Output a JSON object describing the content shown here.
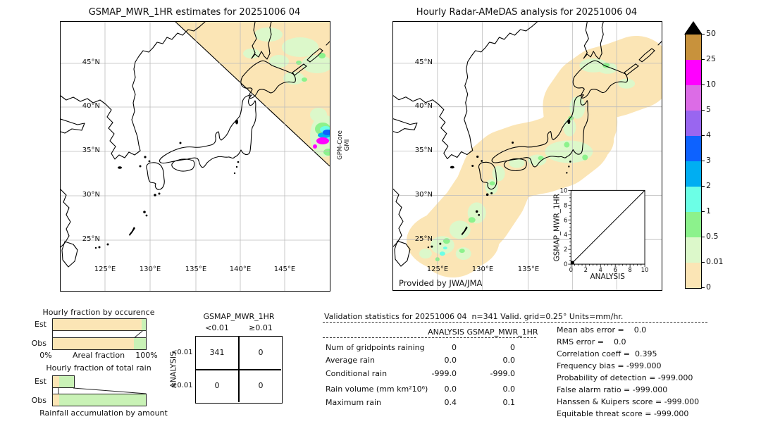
{
  "palette": {
    "peach": "#fbe5b5",
    "palegreen": "#dcf8ca",
    "green": "#8cf28c",
    "bargreen": "#c9f2b6",
    "aqua": "#6cffe6",
    "sky": "#00aef2",
    "blue": "#0d62ff",
    "purple": "#9966f0",
    "orchid": "#dc6ce6",
    "magenta": "#ff00ff",
    "tan": "#c8923c",
    "grid": "#bcbcbc"
  },
  "left_map": {
    "title": "GSMAP_MWR_1HR estimates for 20251006 04",
    "lat_labels": [
      "45°N",
      "40°N",
      "35°N",
      "30°N",
      "25°N"
    ],
    "lon_labels": [
      "125°E",
      "130°E",
      "135°E",
      "140°E",
      "145°E"
    ],
    "overlay_label_line1": "GPM-Core",
    "overlay_label_line2": "GMI"
  },
  "right_map": {
    "title": "Hourly Radar-AMeDAS analysis for 20251006 04",
    "lat_labels": [
      "45°N",
      "40°N",
      "35°N",
      "30°N",
      "25°N"
    ],
    "lon_labels": [
      "125°E",
      "130°E",
      "135°E"
    ],
    "credit": "Provided by JWA/JMA",
    "inset": {
      "ylabel": "GSMAP_MWR_1HR",
      "xlabel": "ANALYSIS",
      "ticks": [
        "0",
        "2",
        "4",
        "6",
        "8",
        "10"
      ]
    }
  },
  "colorbar": {
    "labels": [
      "50",
      "25",
      "10",
      "5",
      "4",
      "3",
      "2",
      "1",
      "0.5",
      "0.01",
      "0"
    ],
    "colors": [
      "#c8923c",
      "#ff00ff",
      "#dc6ce6",
      "#9966f0",
      "#0d62ff",
      "#00aef2",
      "#6cffe6",
      "#8cf28c",
      "#dcf8ca",
      "#fbe5b5"
    ]
  },
  "occurrence_chart": {
    "title": "Hourly fraction by occurence",
    "row_labels": [
      "Est",
      "Obs"
    ],
    "axis_left": "0%",
    "axis_label": "Areal fraction",
    "axis_right": "100%"
  },
  "total_rain_chart": {
    "title": "Hourly fraction of total rain",
    "row_labels": [
      "Est",
      "Obs"
    ],
    "caption": "Rainfall accumulation by amount"
  },
  "contingency": {
    "title": "GSMAP_MWR_1HR",
    "col_labels": [
      "<0.01",
      "≥0.01"
    ],
    "row_axis_label": "ANALYSIS",
    "row_labels": [
      "<0.01",
      "≥0.01"
    ],
    "cells": [
      [
        "341",
        "0"
      ],
      [
        "0",
        "0"
      ]
    ]
  },
  "validation": {
    "title": "Validation statistics for 20251006 04  n=341 Valid. grid=0.25° Units=mm/hr.",
    "col_headers": [
      "ANALYSIS",
      "GSMAP_MWR_1HR"
    ],
    "rows": [
      {
        "label": "Num of gridpoints raining",
        "analysis": "0",
        "gsmap": "0"
      },
      {
        "label": "Average rain",
        "analysis": "0.0",
        "gsmap": "0.0"
      },
      {
        "label": "Conditional rain",
        "analysis": "-999.0",
        "gsmap": "-999.0"
      },
      {
        "label": "Rain volume (mm km²10⁶)",
        "analysis": "0.0",
        "gsmap": "0.0"
      },
      {
        "label": "Maximum rain",
        "analysis": "0.4",
        "gsmap": "0.1"
      }
    ],
    "stats_lines": [
      "Mean abs error =    0.0",
      "RMS error =    0.0",
      "Correlation coeff =  0.395",
      "Frequency bias = -999.000",
      "Probability of detection = -999.000",
      "False alarm ratio = -999.000",
      "Hanssen & Kuipers score = -999.000",
      "Equitable threat score = -999.000"
    ]
  },
  "chart_data": [
    {
      "type": "heatmap",
      "title": "GSMAP_MWR_1HR estimates for 20251006 04",
      "units": "mm/hr",
      "levels": [
        0,
        0.01,
        0.5,
        1,
        2,
        3,
        4,
        5,
        10,
        25,
        50
      ],
      "x_ticks": [
        "125°E",
        "130°E",
        "135°E",
        "140°E",
        "145°E"
      ],
      "y_ticks": [
        "45°N",
        "40°N",
        "35°N",
        "30°N",
        "25°N"
      ],
      "notes": "GPM-Core GMI swath covers the NE diagonal half of the map; mostly 0-0.01 with patches 0.01-1 over Hokkaido and one cell reaching 1-25 mm/hr near 37N 148E at the swath edge"
    },
    {
      "type": "heatmap",
      "title": "Hourly Radar-AMeDAS analysis for 20251006 04",
      "units": "mm/hr",
      "levels": [
        0,
        0.01,
        0.5,
        1,
        2,
        3,
        4,
        5,
        10,
        25,
        50
      ],
      "x_ticks": [
        "125°E",
        "130°E",
        "135°E"
      ],
      "y_ticks": [
        "45°N",
        "40°N",
        "35°N",
        "30°N",
        "25°N"
      ],
      "notes": "Radar coverage band of 0-0.01 values along the archipelago from Okinawa to Hokkaido with scattered 0.01-2 mm/hr patches"
    },
    {
      "type": "bar",
      "title": "Hourly fraction by occurence",
      "categories": [
        "Est",
        "Obs"
      ],
      "series": [
        {
          "name": "fraction below 0.01",
          "values": [
            0.957,
            0.875
          ]
        },
        {
          "name": "fraction 0.01 or more",
          "values": [
            0.043,
            0.125
          ]
        }
      ],
      "xlabel": "Areal fraction",
      "xlim": [
        "0%",
        "100%"
      ]
    },
    {
      "type": "bar",
      "title": "Hourly fraction of total rain",
      "categories": [
        "Est",
        "Obs"
      ],
      "series": [
        {
          "name": "lowest amount bin",
          "values": [
            0.067,
            0.067
          ]
        },
        {
          "name": "higher amount bins",
          "values": [
            0.156,
            0.933
          ]
        }
      ],
      "caption": "Rainfall accumulation by amount"
    },
    {
      "type": "table",
      "title": "GSMAP_MWR_1HR vs ANALYSIS contingency",
      "columns": [
        "<0.01",
        "≥0.01"
      ],
      "rows": [
        "<0.01",
        "≥0.01"
      ],
      "values": [
        [
          341,
          0
        ],
        [
          0,
          0
        ]
      ]
    },
    {
      "type": "scatter",
      "title": "GSMAP_MWR_1HR vs ANALYSIS",
      "xlabel": "ANALYSIS",
      "ylabel": "GSMAP_MWR_1HR",
      "xlim": [
        0,
        10
      ],
      "ylim": [
        0,
        10
      ],
      "points": [
        [
          0,
          0
        ]
      ],
      "identity_line": true
    },
    {
      "type": "table",
      "title": "Validation statistics",
      "columns": [
        "ANALYSIS",
        "GSMAP_MWR_1HR"
      ],
      "rows": [
        [
          "Num of gridpoints raining",
          0,
          0
        ],
        [
          "Average rain",
          0.0,
          0.0
        ],
        [
          "Conditional rain",
          -999.0,
          -999.0
        ],
        [
          "Rain volume (mm km²10⁶)",
          0.0,
          0.0
        ],
        [
          "Maximum rain",
          0.4,
          0.1
        ]
      ],
      "stats": {
        "mean_abs_error": 0.0,
        "rms_error": 0.0,
        "correlation_coeff": 0.395,
        "frequency_bias": -999.0,
        "probability_of_detection": -999.0,
        "false_alarm_ratio": -999.0,
        "hanssen_kuipers_score": -999.0,
        "equitable_threat_score": -999.0
      }
    }
  ]
}
